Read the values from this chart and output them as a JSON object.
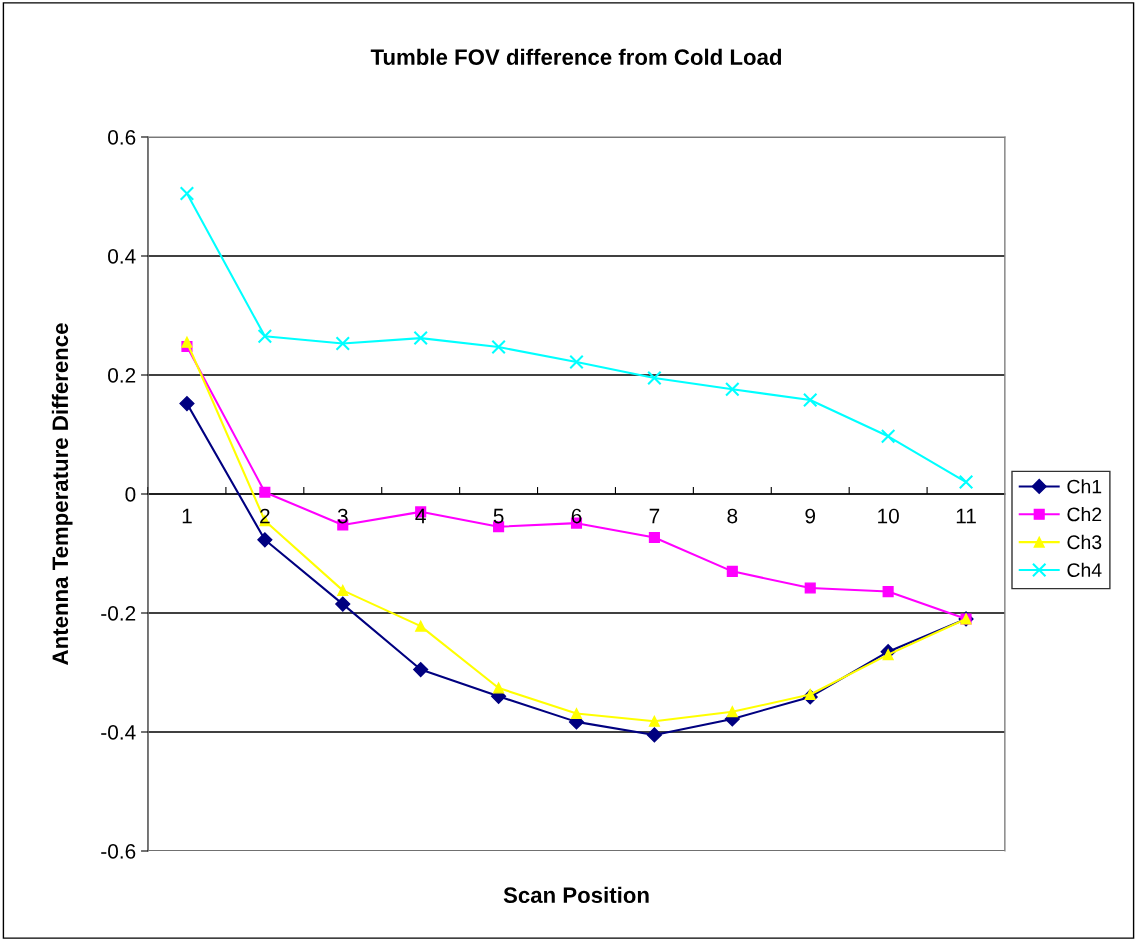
{
  "chart_data": {
    "type": "line",
    "title": "Tumble FOV difference from Cold Load",
    "xlabel": "Scan Position",
    "ylabel": "Antenna Temperature Difference",
    "categories": [
      "1",
      "2",
      "3",
      "4",
      "5",
      "6",
      "7",
      "8",
      "9",
      "10",
      "11"
    ],
    "series": [
      {
        "name": "Ch1",
        "color": "#000080",
        "marker": "diamond",
        "values": [
          0.152,
          -0.077,
          -0.185,
          -0.295,
          -0.34,
          -0.383,
          -0.405,
          -0.378,
          -0.341,
          -0.265,
          -0.21
        ]
      },
      {
        "name": "Ch2",
        "color": "#ff00ff",
        "marker": "square",
        "values": [
          0.248,
          0.003,
          -0.052,
          -0.03,
          -0.055,
          -0.049,
          -0.073,
          -0.13,
          -0.158,
          -0.164,
          -0.21
        ]
      },
      {
        "name": "Ch3",
        "color": "#ffff00",
        "marker": "triangle",
        "values": [
          0.255,
          -0.045,
          -0.162,
          -0.222,
          -0.326,
          -0.369,
          -0.382,
          -0.366,
          -0.337,
          -0.27,
          -0.21
        ]
      },
      {
        "name": "Ch4",
        "color": "#00ffff",
        "marker": "cross",
        "values": [
          0.505,
          0.265,
          0.253,
          0.262,
          0.247,
          0.222,
          0.195,
          0.176,
          0.158,
          0.097,
          0.02
        ]
      }
    ],
    "ylim": [
      -0.6,
      0.6
    ],
    "yticks": [
      {
        "value": -0.6,
        "label": "-0.6"
      },
      {
        "value": -0.4,
        "label": "-0.4"
      },
      {
        "value": -0.2,
        "label": "-0.2"
      },
      0,
      0.2,
      0.4,
      0.6
    ],
    "grid": "y",
    "legend": "right"
  }
}
